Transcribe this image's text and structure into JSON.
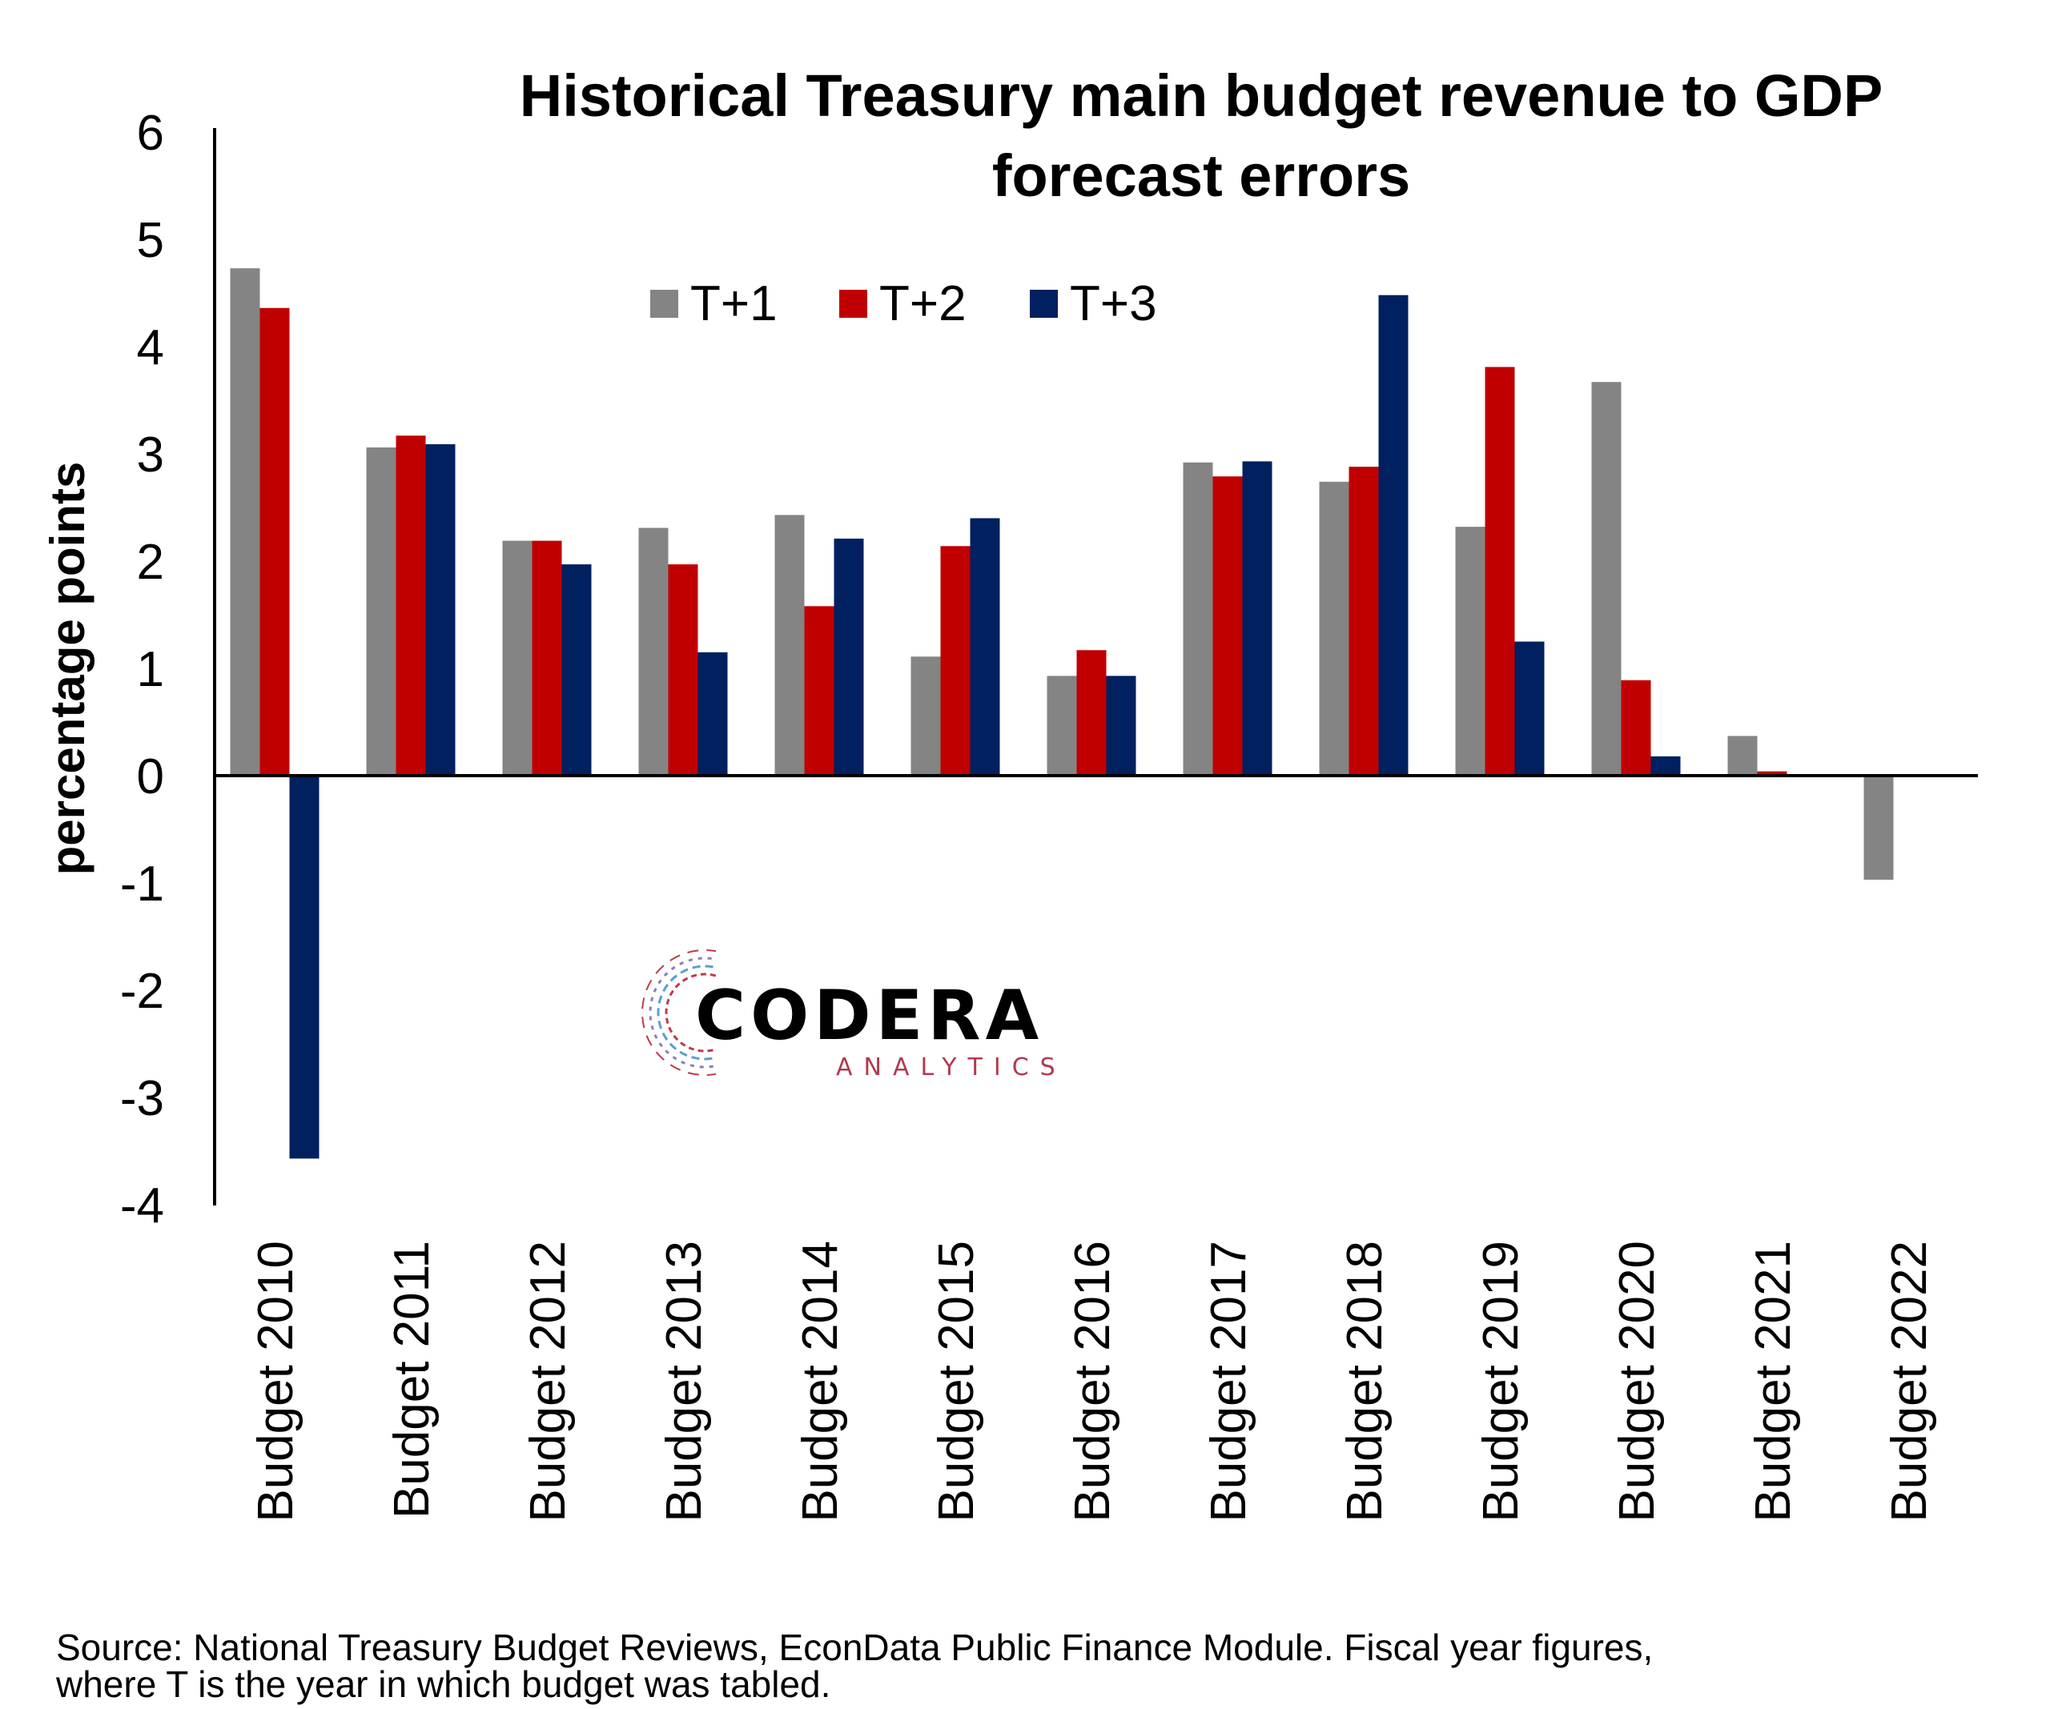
{
  "chart_data": {
    "type": "bar",
    "title": [
      "Historical Treasury main budget revenue to GDP",
      "forecast errors"
    ],
    "ylabel": "percentage points",
    "xlabel": "",
    "ylim": [
      -4,
      6
    ],
    "yticks": [
      "6",
      "5",
      "4",
      "3",
      "2",
      "1",
      "0",
      "-1",
      "-2",
      "-3",
      "-4"
    ],
    "categories": [
      "Budget 2010",
      "Budget 2011",
      "Budget 2012",
      "Budget 2013",
      "Budget 2014",
      "Budget 2015",
      "Budget 2016",
      "Budget 2017",
      "Budget 2018",
      "Budget 2019",
      "Budget 2020",
      "Budget 2021",
      "Budget 2022"
    ],
    "series": [
      {
        "name": "T+1",
        "color": "#848484",
        "values": [
          4.73,
          3.06,
          2.19,
          2.31,
          2.43,
          1.11,
          0.93,
          2.92,
          2.74,
          2.32,
          3.67,
          0.37,
          -0.97
        ]
      },
      {
        "name": "T+2",
        "color": "#c00000",
        "values": [
          4.36,
          3.17,
          2.19,
          1.97,
          1.58,
          2.14,
          1.17,
          2.79,
          2.88,
          3.81,
          0.89,
          0.04,
          null
        ]
      },
      {
        "name": "T+3",
        "color": "#002060",
        "values": [
          -3.57,
          3.09,
          1.97,
          1.15,
          2.21,
          2.4,
          0.93,
          2.93,
          4.48,
          1.25,
          0.18,
          null,
          null
        ]
      }
    ],
    "legend_position": "top-center",
    "grid": false
  },
  "logo": {
    "name": "CODERA",
    "tagline": "ANALYTICS"
  },
  "source": [
    "Source: National Treasury Budget Reviews, EconData Public Finance Module. Fiscal year figures,",
    "where T is the year in which budget was tabled."
  ]
}
